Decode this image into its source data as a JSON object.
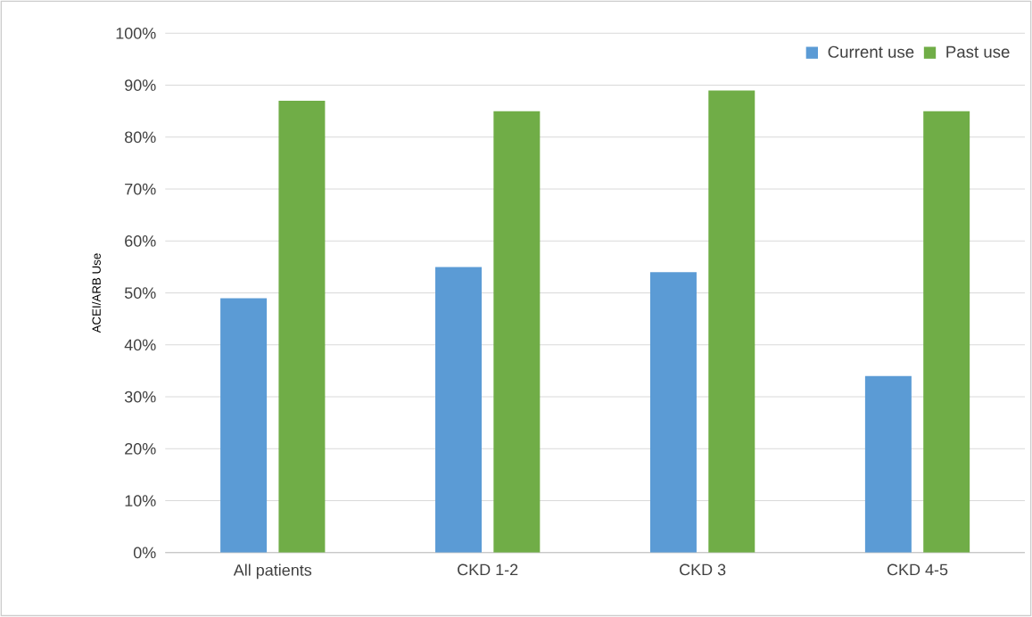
{
  "chart_data": {
    "type": "bar",
    "ylabel": "ACEI/ARB Use",
    "categories": [
      "All patients",
      "CKD 1-2",
      "CKD 3",
      "CKD 4-5"
    ],
    "series": [
      {
        "name": "Current use",
        "color": "#5b9bd5",
        "values": [
          49,
          55,
          54,
          34
        ]
      },
      {
        "name": "Past use",
        "color": "#70ad47",
        "values": [
          87,
          85,
          89,
          85
        ]
      }
    ],
    "ylim": [
      0,
      100
    ],
    "yticks": [
      {
        "value": 0,
        "label": "0%"
      },
      {
        "value": 10,
        "label": "10%"
      },
      {
        "value": 20,
        "label": "20%"
      },
      {
        "value": 30,
        "label": "30%"
      },
      {
        "value": 40,
        "label": "40%"
      },
      {
        "value": 50,
        "label": "50%"
      },
      {
        "value": 60,
        "label": "60%"
      },
      {
        "value": 70,
        "label": "70%"
      },
      {
        "value": 80,
        "label": "80%"
      },
      {
        "value": 90,
        "label": "90%"
      },
      {
        "value": 100,
        "label": "100%"
      }
    ],
    "grid": "y",
    "legend": "top right"
  }
}
